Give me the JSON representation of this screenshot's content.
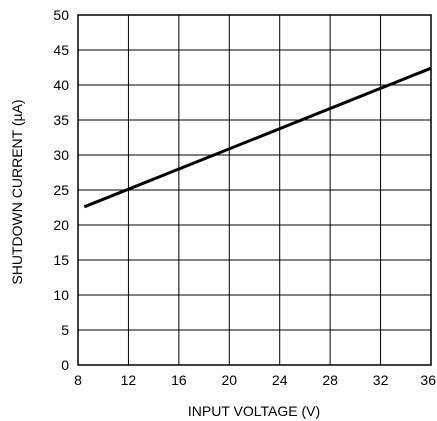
{
  "chart_data": {
    "type": "line",
    "xlabel": "INPUT VOLTAGE (V)",
    "ylabel": "SHUTDOWN CURRENT (µA)",
    "xlim": [
      8,
      36
    ],
    "ylim": [
      0,
      50
    ],
    "x_ticks": [
      "8",
      "12",
      "16",
      "20",
      "24",
      "28",
      "32",
      "36"
    ],
    "y_ticks": [
      "0",
      "5",
      "10",
      "15",
      "20",
      "25",
      "30",
      "35",
      "40",
      "45",
      "50"
    ],
    "grid": true,
    "series": [
      {
        "x": [
          8.5,
          36
        ],
        "y": [
          22.6,
          42.4
        ]
      }
    ]
  }
}
